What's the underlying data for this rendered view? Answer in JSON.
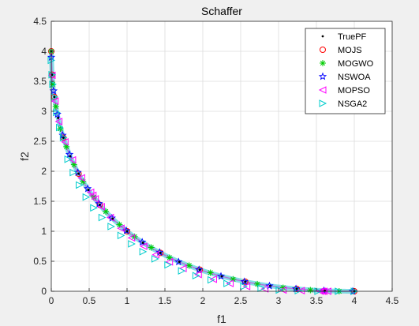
{
  "chart_data": {
    "type": "scatter",
    "title": "Schaffer",
    "xlabel": "f1",
    "ylabel": "f2",
    "xlim": [
      0,
      4.5
    ],
    "ylim": [
      0,
      4.5
    ],
    "xticks": [
      "0",
      "0.5",
      "1",
      "1.5",
      "2",
      "2.5",
      "3",
      "3.5",
      "4",
      "4.5"
    ],
    "yticks": [
      "0",
      "0.5",
      "1",
      "1.5",
      "2",
      "2.5",
      "3",
      "3.5",
      "4",
      "4.5"
    ],
    "grid": true,
    "legend_position": "top-right",
    "front": "f2 = (sqrt(f1) - 2)^2 for f1 in [0, 4]",
    "series": [
      {
        "name": "TruePF",
        "marker": "dot",
        "color": "#000000",
        "x": [
          0,
          0.01,
          0.04,
          0.09,
          0.16,
          0.25,
          0.36,
          0.49,
          0.64,
          0.81,
          1,
          1.21,
          1.44,
          1.69,
          1.96,
          2.25,
          2.56,
          2.89,
          3.24,
          3.61,
          4
        ],
        "y": [
          4,
          3.61,
          3.24,
          2.89,
          2.56,
          2.25,
          1.96,
          1.69,
          1.44,
          1.21,
          1,
          0.81,
          0.64,
          0.49,
          0.36,
          0.25,
          0.16,
          0.09,
          0.04,
          0.01,
          0
        ]
      },
      {
        "name": "MOJS",
        "marker": "circle",
        "color": "#ff0000",
        "x": [
          0,
          0.01,
          0.04,
          0.16,
          0.36,
          0.64,
          1,
          1.44,
          1.96,
          2.56,
          3.24,
          4
        ],
        "y": [
          4,
          3.61,
          3.24,
          2.56,
          1.96,
          1.44,
          1,
          0.64,
          0.36,
          0.16,
          0.04,
          0
        ]
      },
      {
        "name": "MOGWO",
        "marker": "asterisk",
        "color": "#00cc00",
        "x": [
          0,
          0.02,
          0.06,
          0.12,
          0.2,
          0.3,
          0.42,
          0.56,
          0.72,
          0.9,
          1.1,
          1.32,
          1.56,
          1.82,
          2.1,
          2.4,
          2.72,
          3.06,
          3.42,
          3.8
        ],
        "y": [
          4,
          3.45,
          3.08,
          2.71,
          2.41,
          2.11,
          1.83,
          1.57,
          1.33,
          1.11,
          0.91,
          0.73,
          0.56,
          0.43,
          0.31,
          0.2,
          0.12,
          0.06,
          0.02,
          0
        ]
      },
      {
        "name": "NSWOA",
        "marker": "star",
        "color": "#0000ff",
        "x": [
          0,
          0.03,
          0.08,
          0.15,
          0.24,
          0.35,
          0.48,
          0.63,
          0.8,
          0.99,
          1.2,
          1.43,
          1.68,
          1.95,
          2.24,
          2.55,
          2.88,
          3.23,
          3.6,
          3.98
        ],
        "y": [
          3.9,
          3.34,
          2.95,
          2.6,
          2.28,
          1.98,
          1.71,
          1.46,
          1.22,
          1.01,
          0.82,
          0.65,
          0.49,
          0.36,
          0.25,
          0.16,
          0.09,
          0.04,
          0.01,
          0
        ]
      },
      {
        "name": "MOPSO",
        "marker": "triangle-left",
        "color": "#ff00ff",
        "x": [
          0.01,
          0.05,
          0.1,
          0.18,
          0.28,
          0.4,
          0.52,
          0.55,
          0.58,
          0.66,
          0.78,
          0.92,
          1.06,
          1.22,
          1.38,
          1.56,
          1.74,
          1.94,
          2.14,
          2.36,
          2.58,
          2.82,
          3.06,
          3.3,
          3.55,
          3.58,
          3.6,
          3.65
        ],
        "y": [
          3.6,
          3.17,
          2.83,
          2.49,
          2.19,
          1.89,
          1.65,
          1.6,
          1.54,
          1.41,
          1.23,
          1.05,
          0.89,
          0.75,
          0.61,
          0.49,
          0.38,
          0.28,
          0.2,
          0.13,
          0.08,
          0.04,
          0.02,
          0.01,
          0,
          0,
          0,
          0
        ]
      },
      {
        "name": "NSGA2",
        "marker": "triangle-right",
        "color": "#00cccc",
        "x": [
          0,
          0.01,
          0.02,
          0.04,
          0.07,
          0.11,
          0.16,
          0.22,
          0.29,
          0.37,
          0.46,
          0.56,
          0.67,
          0.79,
          0.92,
          1.06,
          1.21,
          1.37,
          1.54,
          1.72,
          1.91,
          2.11,
          2.32,
          2.54,
          2.77,
          3.01,
          3.26,
          3.52,
          3.79,
          4
        ],
        "y": [
          3.85,
          3.61,
          3.45,
          3.24,
          2.98,
          2.73,
          2.56,
          2.2,
          1.98,
          1.77,
          1.57,
          1.39,
          1.23,
          1.08,
          0.93,
          0.79,
          0.66,
          0.54,
          0.44,
          0.34,
          0.26,
          0.19,
          0.13,
          0.08,
          0.05,
          0.02,
          0.01,
          0,
          0,
          0
        ]
      }
    ]
  }
}
